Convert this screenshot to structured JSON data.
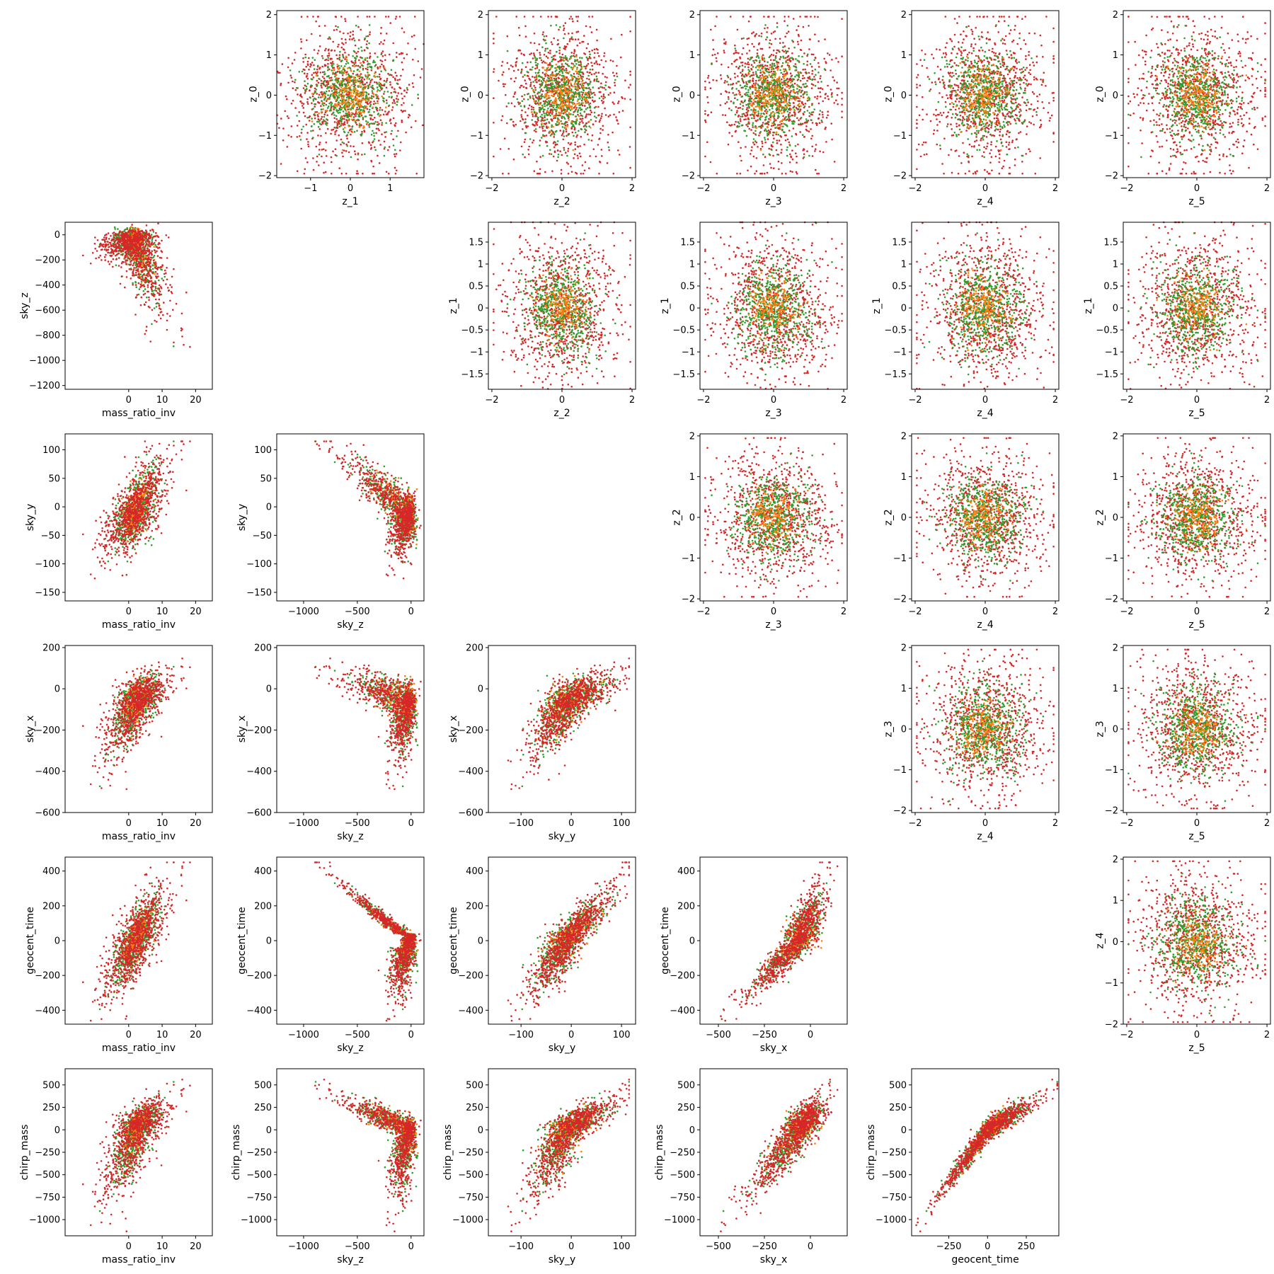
{
  "chart_data": {
    "type": "scatter",
    "layout": "lower-triangle and upper-triangle pair grid",
    "point_colors": [
      "#d62728",
      "#2ca02c",
      "#ff7f0e"
    ],
    "series": [
      {
        "color": "#d62728",
        "count": 900
      },
      {
        "color": "#2ca02c",
        "count": 520
      },
      {
        "color": "#ff7f0e",
        "count": 200
      }
    ],
    "variables": {
      "mass_ratio_inv": {
        "ticks": [
          0,
          10,
          20
        ],
        "lim": [
          -19,
          25
        ]
      },
      "sky_z": {
        "ticks": [
          -1000,
          -500,
          0
        ],
        "lim": [
          -1250,
          120
        ]
      },
      "sky_y": {
        "ticks": [
          -100,
          0,
          100
        ],
        "lim": [
          -165,
          128
        ]
      },
      "sky_x": {
        "ticks": [
          -500,
          -250,
          0
        ],
        "lim": [
          -600,
          200
        ]
      },
      "geocent_time": {
        "ticks": [
          -250,
          0,
          250
        ],
        "lim": [
          -490,
          460
        ]
      }
    },
    "lower_grid": [
      {
        "xlabel": "mass_ratio_inv",
        "ylabel": "sky_z",
        "yticks": [
          0,
          -200,
          -400,
          -600,
          -800,
          -1000,
          -1200
        ],
        "ylim": [
          -1230,
          100
        ]
      },
      {
        "xlabel": "mass_ratio_inv",
        "ylabel": "sky_y",
        "yticks": [
          100,
          50,
          0,
          -50,
          -100,
          -150
        ],
        "ylim": [
          -165,
          128
        ]
      },
      {
        "xlabel": "sky_z",
        "ylabel": "sky_y",
        "yticks": [
          100,
          50,
          0,
          -50,
          -100,
          -150
        ],
        "ylim": [
          -165,
          128
        ]
      },
      {
        "xlabel": "mass_ratio_inv",
        "ylabel": "sky_x",
        "yticks": [
          200,
          0,
          -200,
          -400,
          -600
        ],
        "ylim": [
          -600,
          210
        ]
      },
      {
        "xlabel": "sky_z",
        "ylabel": "sky_x",
        "yticks": [
          200,
          0,
          -200,
          -400,
          -600
        ],
        "ylim": [
          -600,
          210
        ]
      },
      {
        "xlabel": "sky_y",
        "ylabel": "sky_x",
        "yticks": [
          200,
          0,
          -200,
          -400,
          -600
        ],
        "ylim": [
          -600,
          210
        ]
      },
      {
        "xlabel": "mass_ratio_inv",
        "ylabel": "geocent_time",
        "yticks": [
          400,
          200,
          0,
          -200,
          -400
        ],
        "ylim": [
          -480,
          480
        ]
      },
      {
        "xlabel": "sky_z",
        "ylabel": "geocent_time",
        "yticks": [
          400,
          200,
          0,
          -200,
          -400
        ],
        "ylim": [
          -480,
          480
        ]
      },
      {
        "xlabel": "sky_y",
        "ylabel": "geocent_time",
        "yticks": [
          400,
          200,
          0,
          -200,
          -400
        ],
        "ylim": [
          -480,
          480
        ]
      },
      {
        "xlabel": "sky_x",
        "ylabel": "geocent_time",
        "yticks": [
          400,
          200,
          0,
          -200,
          -400
        ],
        "ylim": [
          -480,
          480
        ]
      },
      {
        "xlabel": "mass_ratio_inv",
        "ylabel": "chirp_mass",
        "yticks": [
          500,
          250,
          0,
          -250,
          -500,
          -750,
          -1000
        ],
        "ylim": [
          -1180,
          680
        ]
      },
      {
        "xlabel": "sky_z",
        "ylabel": "chirp_mass",
        "yticks": [
          500,
          250,
          0,
          -250,
          -500,
          -750,
          -1000
        ],
        "ylim": [
          -1180,
          680
        ]
      },
      {
        "xlabel": "sky_y",
        "ylabel": "chirp_mass",
        "yticks": [
          500,
          250,
          0,
          -250,
          -500,
          -750,
          -1000
        ],
        "ylim": [
          -1180,
          680
        ]
      },
      {
        "xlabel": "sky_x",
        "ylabel": "chirp_mass",
        "yticks": [
          500,
          250,
          0,
          -250,
          -500,
          -750,
          -1000
        ],
        "ylim": [
          -1180,
          680
        ]
      },
      {
        "xlabel": "geocent_time",
        "ylabel": "chirp_mass",
        "yticks": [
          500,
          250,
          0,
          -250,
          -500,
          -750,
          -1000
        ],
        "ylim": [
          -1180,
          680
        ]
      }
    ],
    "upper_grid": [
      {
        "xlabel": "z_1",
        "ylabel": "z_0",
        "xticks": [
          -1,
          0,
          1
        ],
        "xlim": [
          -1.85,
          1.85
        ],
        "yticks": [
          2,
          1,
          0,
          -1,
          -2
        ],
        "ylim": [
          -2.05,
          2.1
        ]
      },
      {
        "xlabel": "z_2",
        "ylabel": "z_0",
        "xticks": [
          -2,
          0,
          2
        ],
        "xlim": [
          -2.1,
          2.1
        ],
        "yticks": [
          2,
          1,
          0,
          -1,
          -2
        ],
        "ylim": [
          -2.05,
          2.1
        ]
      },
      {
        "xlabel": "z_3",
        "ylabel": "z_0",
        "xticks": [
          -2,
          0,
          2
        ],
        "xlim": [
          -2.1,
          2.1
        ],
        "yticks": [
          2,
          1,
          0,
          -1,
          -2
        ],
        "ylim": [
          -2.05,
          2.1
        ]
      },
      {
        "xlabel": "z_4",
        "ylabel": "z_0",
        "xticks": [
          -2,
          0,
          2
        ],
        "xlim": [
          -2.1,
          2.1
        ],
        "yticks": [
          2,
          1,
          0,
          -1,
          -2
        ],
        "ylim": [
          -2.05,
          2.1
        ]
      },
      {
        "xlabel": "z_5",
        "ylabel": "z_0",
        "xticks": [
          -2,
          0,
          2
        ],
        "xlim": [
          -2.1,
          2.1
        ],
        "yticks": [
          2,
          1,
          0,
          -1,
          -2
        ],
        "ylim": [
          -2.05,
          2.1
        ]
      },
      {
        "xlabel": "z_2",
        "ylabel": "z_1",
        "xticks": [
          -2,
          0,
          2
        ],
        "xlim": [
          -2.1,
          2.1
        ],
        "yticks": [
          1.5,
          1.0,
          0.5,
          0.0,
          -0.5,
          -1.0,
          -1.5
        ],
        "ylim": [
          -1.85,
          1.95
        ]
      },
      {
        "xlabel": "z_3",
        "ylabel": "z_1",
        "xticks": [
          -2,
          0,
          2
        ],
        "xlim": [
          -2.1,
          2.1
        ],
        "yticks": [
          1.5,
          1.0,
          0.5,
          0.0,
          -0.5,
          -1.0,
          -1.5
        ],
        "ylim": [
          -1.85,
          1.95
        ]
      },
      {
        "xlabel": "z_4",
        "ylabel": "z_1",
        "xticks": [
          -2,
          0,
          2
        ],
        "xlim": [
          -2.1,
          2.1
        ],
        "yticks": [
          1.5,
          1.0,
          0.5,
          0.0,
          -0.5,
          -1.0,
          -1.5
        ],
        "ylim": [
          -1.85,
          1.95
        ]
      },
      {
        "xlabel": "z_5",
        "ylabel": "z_1",
        "xticks": [
          -2,
          0,
          2
        ],
        "xlim": [
          -2.1,
          2.1
        ],
        "yticks": [
          1.5,
          1.0,
          0.5,
          0.0,
          -0.5,
          -1.0,
          -1.5
        ],
        "ylim": [
          -1.85,
          1.95
        ]
      },
      {
        "xlabel": "z_3",
        "ylabel": "z_2",
        "xticks": [
          -2,
          0,
          2
        ],
        "xlim": [
          -2.1,
          2.1
        ],
        "yticks": [
          2,
          1,
          0,
          -1,
          -2
        ],
        "ylim": [
          -2.05,
          2.05
        ]
      },
      {
        "xlabel": "z_4",
        "ylabel": "z_2",
        "xticks": [
          -2,
          0,
          2
        ],
        "xlim": [
          -2.1,
          2.1
        ],
        "yticks": [
          2,
          1,
          0,
          -1,
          -2
        ],
        "ylim": [
          -2.05,
          2.05
        ]
      },
      {
        "xlabel": "z_5",
        "ylabel": "z_2",
        "xticks": [
          -2,
          0,
          2
        ],
        "xlim": [
          -2.1,
          2.1
        ],
        "yticks": [
          2,
          1,
          0,
          -1,
          -2
        ],
        "ylim": [
          -2.05,
          2.05
        ]
      },
      {
        "xlabel": "z_4",
        "ylabel": "z_3",
        "xticks": [
          -2,
          0,
          2
        ],
        "xlim": [
          -2.1,
          2.1
        ],
        "yticks": [
          2,
          1,
          0,
          -1,
          -2
        ],
        "ylim": [
          -2.05,
          2.05
        ]
      },
      {
        "xlabel": "z_5",
        "ylabel": "z_3",
        "xticks": [
          -2,
          0,
          2
        ],
        "xlim": [
          -2.1,
          2.1
        ],
        "yticks": [
          2,
          1,
          0,
          -1,
          -2
        ],
        "ylim": [
          -2.05,
          2.05
        ]
      },
      {
        "xlabel": "z_5",
        "ylabel": "z_4",
        "xticks": [
          -2,
          0,
          2
        ],
        "xlim": [
          -2.1,
          2.1
        ],
        "yticks": [
          2,
          1,
          0,
          -1,
          -2
        ],
        "ylim": [
          -2.0,
          2.05
        ]
      }
    ]
  }
}
